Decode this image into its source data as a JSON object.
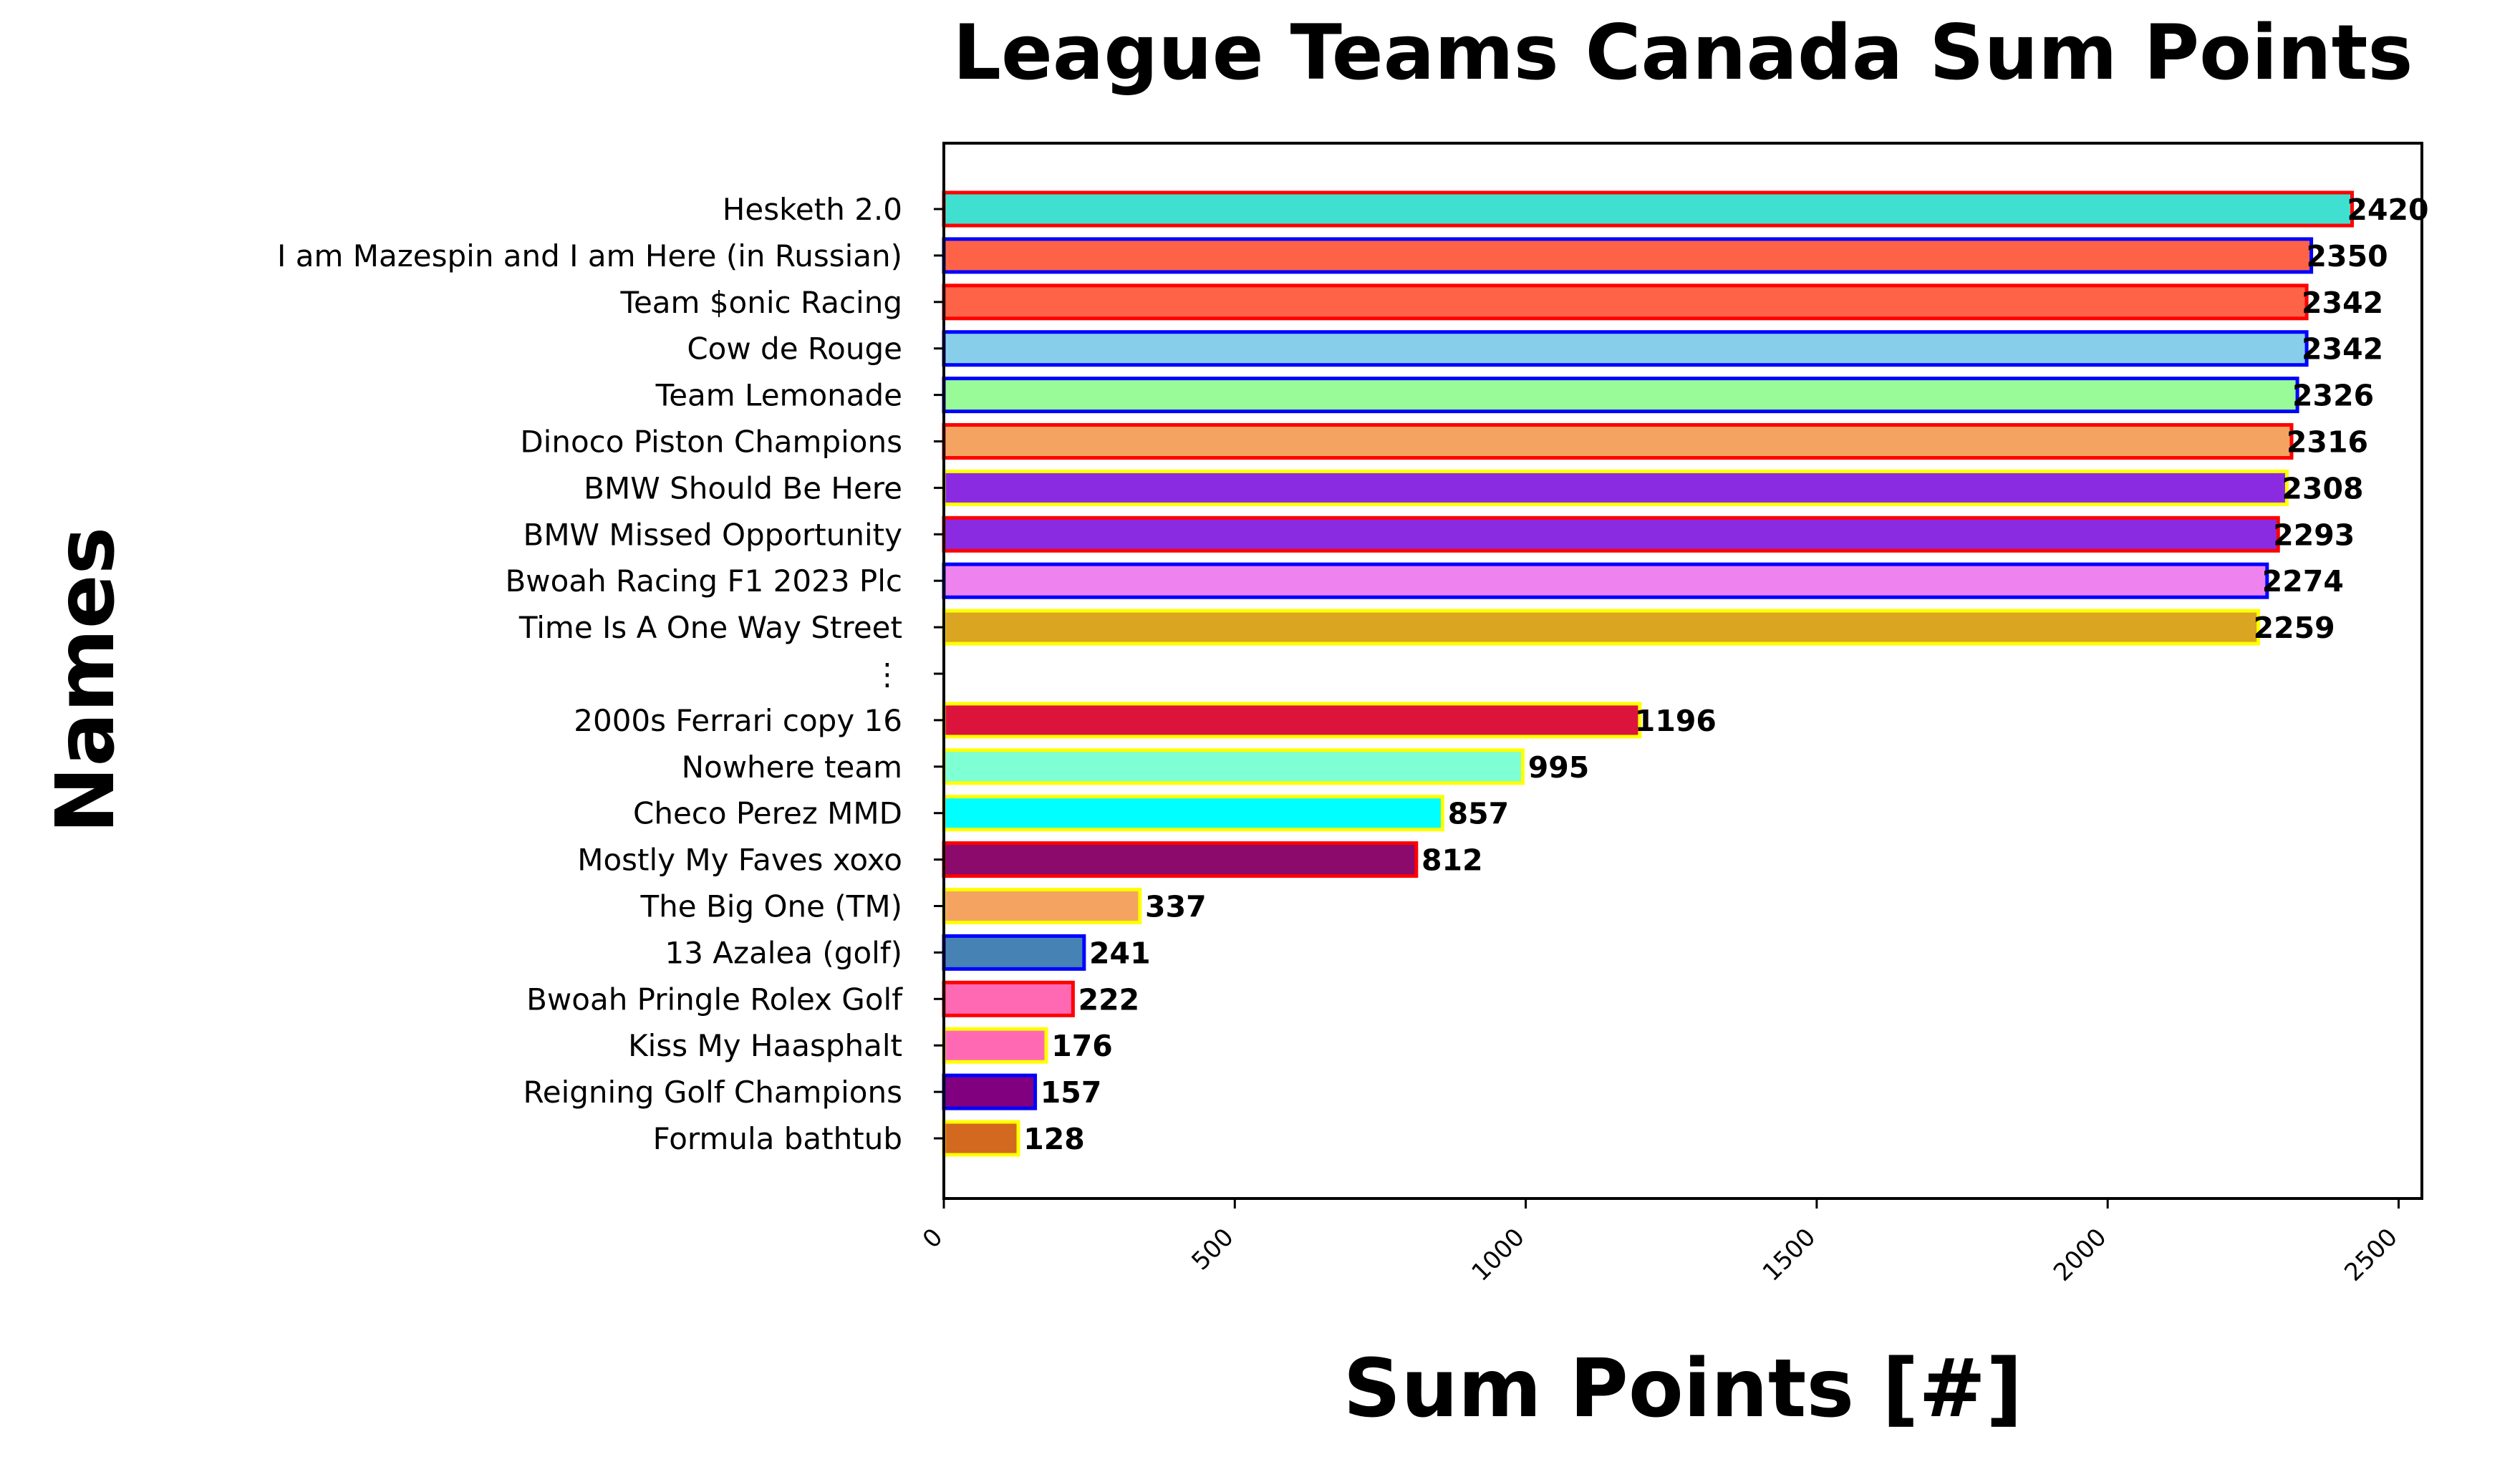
{
  "chart_data": {
    "type": "bar",
    "orientation": "horizontal",
    "title": "League Teams Canada Sum Points",
    "xlabel": "Sum Points [#]",
    "ylabel": "Names",
    "xlim": [
      0,
      2540
    ],
    "xticks": [
      "0",
      "500",
      "1000",
      "1500",
      "2000",
      "2500"
    ],
    "grid": false,
    "bars": [
      {
        "name": "Hesketh 2.0",
        "value": 2420,
        "label": "2420",
        "fill": "#40E0D0",
        "edge": "#FF0000"
      },
      {
        "name": "I am Mazespin and I am Here (in Russian)",
        "value": 2350,
        "label": "2350",
        "fill": "#FF6347",
        "edge": "#0000FF"
      },
      {
        "name": "Team $onic Racing",
        "value": 2342,
        "label": "2342",
        "fill": "#FF6347",
        "edge": "#FF0000"
      },
      {
        "name": "Cow de Rouge",
        "value": 2342,
        "label": "2342",
        "fill": "#87CEEB",
        "edge": "#0000FF"
      },
      {
        "name": "Team Lemonade",
        "value": 2326,
        "label": "2326",
        "fill": "#98FB98",
        "edge": "#0000FF"
      },
      {
        "name": "Dinoco Piston Champions",
        "value": 2316,
        "label": "2316",
        "fill": "#F4A460",
        "edge": "#FF0000"
      },
      {
        "name": "BMW Should Be Here",
        "value": 2308,
        "label": "2308",
        "fill": "#8A2BE2",
        "edge": "#FFFF00"
      },
      {
        "name": "BMW Missed Opportunity",
        "value": 2293,
        "label": "2293",
        "fill": "#8A2BE2",
        "edge": "#FF0000"
      },
      {
        "name": "Bwoah Racing F1 2023 Plc",
        "value": 2274,
        "label": "2274",
        "fill": "#EE82EE",
        "edge": "#0000FF"
      },
      {
        "name": "Time Is A One Way Street",
        "value": 2259,
        "label": "2259",
        "fill": "#DAA520",
        "edge": "#FFFF00"
      },
      {
        "name": "⋮",
        "value": null,
        "label": "",
        "fill": "",
        "edge": ""
      },
      {
        "name": "2000s Ferrari copy 16",
        "value": 1196,
        "label": "1196",
        "fill": "#DC143C",
        "edge": "#FFFF00"
      },
      {
        "name": "Nowhere team",
        "value": 995,
        "label": "995",
        "fill": "#7FFFD4",
        "edge": "#FFFF00"
      },
      {
        "name": "Checo Perez MMD",
        "value": 857,
        "label": "857",
        "fill": "#00FFFF",
        "edge": "#FFFF00"
      },
      {
        "name": "Mostly My Faves xoxo",
        "value": 812,
        "label": "812",
        "fill": "#8B0A6B",
        "edge": "#FF0000"
      },
      {
        "name": "The Big One (TM)",
        "value": 337,
        "label": "337",
        "fill": "#F4A460",
        "edge": "#FFFF00"
      },
      {
        "name": "13 Azalea (golf)",
        "value": 241,
        "label": "241",
        "fill": "#4682B4",
        "edge": "#0000FF"
      },
      {
        "name": "Bwoah Pringle Rolex Golf",
        "value": 222,
        "label": "222",
        "fill": "#FF69B4",
        "edge": "#FF0000"
      },
      {
        "name": "Kiss My Haasphalt",
        "value": 176,
        "label": "176",
        "fill": "#FF69B4",
        "edge": "#FFFF00"
      },
      {
        "name": "Reigning Golf Champions",
        "value": 157,
        "label": "157",
        "fill": "#800080",
        "edge": "#0000FF"
      },
      {
        "name": "Formula bathtub",
        "value": 128,
        "label": "128",
        "fill": "#D2691E",
        "edge": "#FFFF00"
      }
    ]
  }
}
